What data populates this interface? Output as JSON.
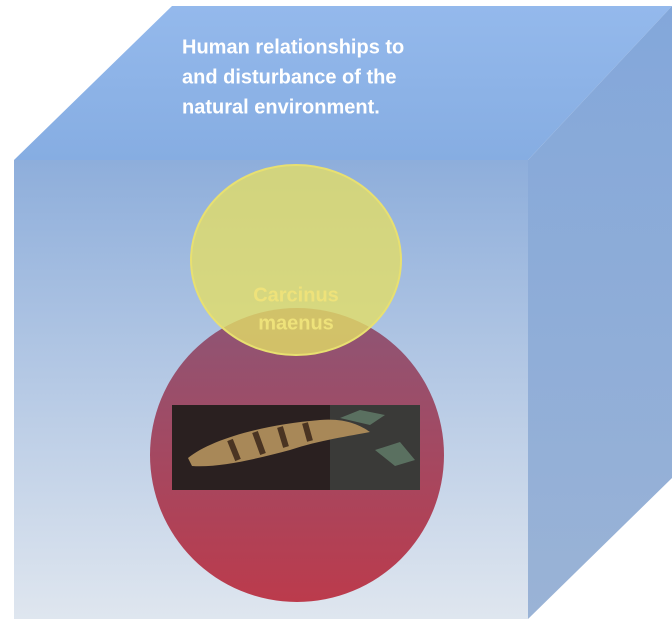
{
  "top_text": [
    "Human relationships to",
    "and disturbance of the",
    "natural environment."
  ],
  "circle_label": [
    "Carcinus",
    "maenus"
  ]
}
